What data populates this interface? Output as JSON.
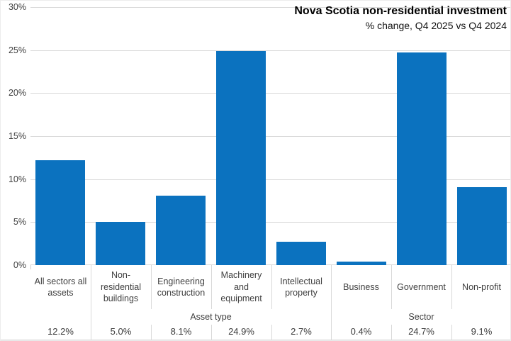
{
  "chart_data": {
    "type": "bar",
    "title": "Nova Scotia non-residential investment",
    "subtitle": "% change, Q4 2025 vs Q4 2024",
    "categories": [
      "All sectors all assets",
      "Non-residential buildings",
      "Engineering construction",
      "Machinery and equipment",
      "Intellectual property",
      "Business",
      "Government",
      "Non-profit"
    ],
    "category_label_lines": [
      [
        "All sectors all",
        "assets"
      ],
      [
        "Non-",
        "residential",
        "buildings"
      ],
      [
        "Engineering",
        "construction"
      ],
      [
        "Machinery",
        "and",
        "equipment"
      ],
      [
        "Intellectual",
        "property"
      ],
      [
        "Business"
      ],
      [
        "Government"
      ],
      [
        "Non-profit"
      ]
    ],
    "values": [
      12.2,
      5.0,
      8.1,
      24.9,
      2.7,
      0.4,
      24.7,
      9.1
    ],
    "value_labels": [
      "12.2%",
      "5.0%",
      "8.1%",
      "24.9%",
      "2.7%",
      "0.4%",
      "24.7%",
      "9.1%"
    ],
    "groups": [
      {
        "label": "",
        "span": 1
      },
      {
        "label": "Asset type",
        "span": 4
      },
      {
        "label": "Sector",
        "span": 3
      }
    ],
    "xlabel": "",
    "ylabel": "",
    "ylim": [
      0,
      30
    ],
    "ytick_step": 5,
    "ytick_labels": [
      "0%",
      "5%",
      "10%",
      "15%",
      "20%",
      "25%",
      "30%"
    ],
    "grid": true,
    "legend": "none",
    "bar_color": "#0B72BF",
    "gridline_color": "#D9D9D9",
    "axis_text_color": "#404040"
  }
}
